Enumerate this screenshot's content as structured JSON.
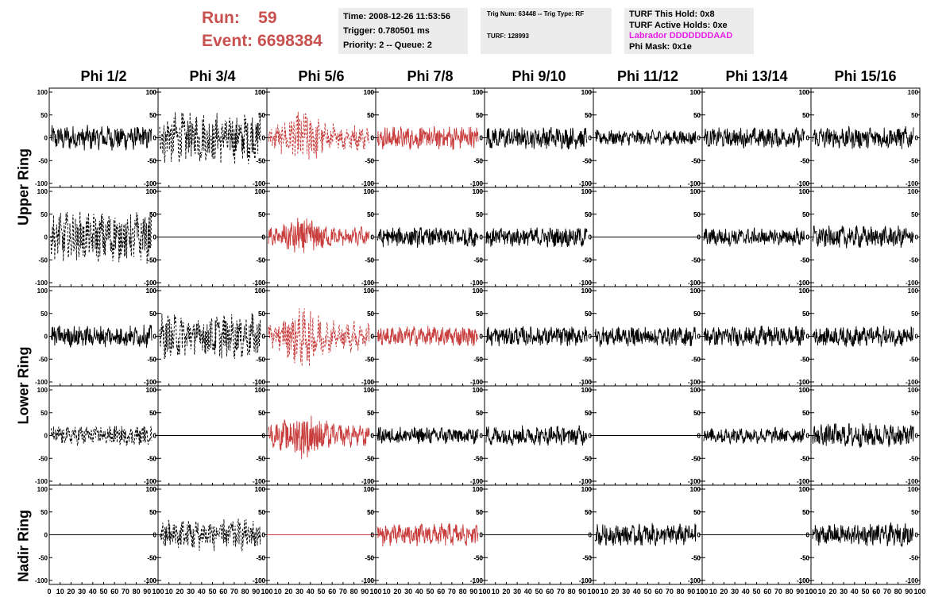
{
  "header": {
    "run_label": "Run:",
    "run_value": "59",
    "event_label": "Event:",
    "event_value": "6698384",
    "info1": [
      "Time: 2008-12-26 11:53:56",
      "Trigger: 0.780501 ms",
      "Priority: 2 -- Queue: 2"
    ],
    "info2": [
      "Trig Num: 63448 -- Trig Type: RF",
      "TURF: 128993"
    ],
    "info3": [
      "TURF This Hold: 0x8",
      "TURF Active Holds: 0xe",
      "Labrador DDDDDDDAAD",
      "Phi Mask: 0x1e"
    ],
    "labrador_color": "#e81ee8",
    "run_color": "#c8504e"
  },
  "columns": [
    "Phi 1/2",
    "Phi 3/4",
    "Phi 5/6",
    "Phi 7/8",
    "Phi 9/10",
    "Phi 11/12",
    "Phi 13/14",
    "Phi 15/16"
  ],
  "rings": [
    "Upper Ring",
    "Lower Ring",
    "Nadir Ring"
  ],
  "y_ticks": [
    "100",
    "50",
    "0",
    "-50",
    "-100"
  ],
  "x_ticks": [
    "0",
    "10",
    "20",
    "30",
    "40",
    "50",
    "60",
    "70",
    "80",
    "90",
    "100"
  ],
  "colors": {
    "black": "#000000",
    "red": "#c83c3c"
  },
  "chart_data": {
    "type": "line",
    "xlim": [
      0,
      100
    ],
    "ylim": [
      -100,
      100
    ],
    "rows": [
      {
        "ring": "Upper Ring",
        "panels": [
          {
            "style": "solid",
            "color": "black",
            "amp": 22
          },
          {
            "style": "dashed",
            "color": "black",
            "amp": 45
          },
          {
            "style": "dashed",
            "color": "red",
            "amp": 40
          },
          {
            "style": "solid",
            "color": "red",
            "amp": 22
          },
          {
            "style": "solid",
            "color": "black",
            "amp": 20
          },
          {
            "style": "solid",
            "color": "black",
            "amp": 14
          },
          {
            "style": "solid",
            "color": "black",
            "amp": 18
          },
          {
            "style": "solid",
            "color": "black",
            "amp": 20
          }
        ]
      },
      {
        "ring": "Upper Ring",
        "panels": [
          {
            "style": "dashed",
            "color": "black",
            "amp": 45
          },
          {
            "style": "flat",
            "color": "black",
            "amp": 0
          },
          {
            "style": "solid",
            "color": "red",
            "amp": 30
          },
          {
            "style": "solid",
            "color": "black",
            "amp": 18
          },
          {
            "style": "solid",
            "color": "black",
            "amp": 18
          },
          {
            "style": "flat",
            "color": "black",
            "amp": 0
          },
          {
            "style": "solid",
            "color": "black",
            "amp": 16
          },
          {
            "style": "solid",
            "color": "black",
            "amp": 20
          }
        ]
      },
      {
        "ring": "Lower Ring",
        "panels": [
          {
            "style": "solid",
            "color": "black",
            "amp": 20
          },
          {
            "style": "dashed",
            "color": "black",
            "amp": 40
          },
          {
            "style": "dashed",
            "color": "red",
            "amp": 45
          },
          {
            "style": "solid",
            "color": "red",
            "amp": 18
          },
          {
            "style": "solid",
            "color": "black",
            "amp": 18
          },
          {
            "style": "solid",
            "color": "black",
            "amp": 18
          },
          {
            "style": "solid",
            "color": "black",
            "amp": 18
          },
          {
            "style": "solid",
            "color": "black",
            "amp": 18
          }
        ]
      },
      {
        "ring": "Lower Ring",
        "panels": [
          {
            "style": "dashed",
            "color": "black",
            "amp": 18
          },
          {
            "style": "flat",
            "color": "black",
            "amp": 0
          },
          {
            "style": "solid",
            "color": "red",
            "amp": 35
          },
          {
            "style": "solid",
            "color": "black",
            "amp": 16
          },
          {
            "style": "solid",
            "color": "black",
            "amp": 18
          },
          {
            "style": "flat",
            "color": "black",
            "amp": 0
          },
          {
            "style": "solid",
            "color": "black",
            "amp": 14
          },
          {
            "style": "solid",
            "color": "black",
            "amp": 22
          }
        ]
      },
      {
        "ring": "Nadir Ring",
        "panels": [
          {
            "style": "flat",
            "color": "black",
            "amp": 0
          },
          {
            "style": "dashed",
            "color": "black",
            "amp": 28
          },
          {
            "style": "flat",
            "color": "red",
            "amp": 0
          },
          {
            "style": "solid",
            "color": "red",
            "amp": 20
          },
          {
            "style": "flat",
            "color": "black",
            "amp": 0
          },
          {
            "style": "solid",
            "color": "black",
            "amp": 20
          },
          {
            "style": "flat",
            "color": "black",
            "amp": 0
          },
          {
            "style": "solid",
            "color": "black",
            "amp": 20
          }
        ]
      }
    ]
  }
}
